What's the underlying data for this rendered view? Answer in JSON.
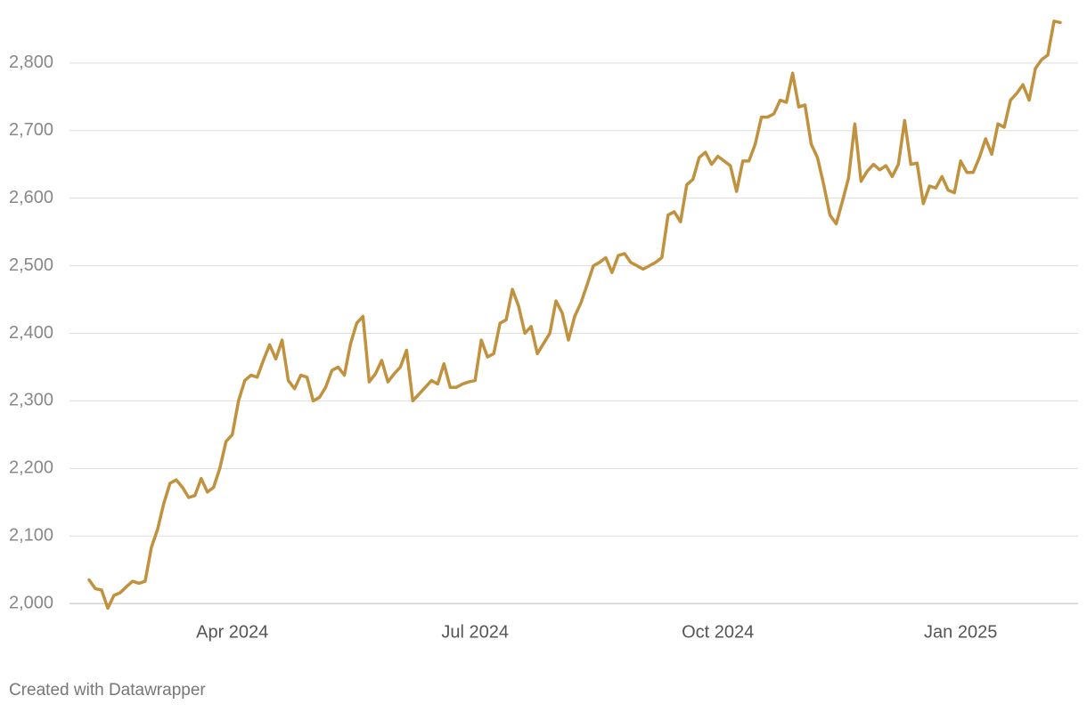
{
  "chart_data": {
    "type": "line",
    "categories": [
      null,
      null,
      null,
      null,
      null,
      null,
      null,
      null,
      null,
      null,
      null,
      null,
      null,
      null,
      null,
      null,
      null,
      null,
      null,
      null,
      null,
      null,
      null,
      "Apr 2024",
      null,
      null,
      null,
      null,
      null,
      null,
      null,
      null,
      null,
      null,
      null,
      null,
      null,
      null,
      null,
      null,
      null,
      null,
      null,
      null,
      null,
      null,
      null,
      null,
      null,
      null,
      null,
      null,
      null,
      null,
      null,
      null,
      null,
      null,
      null,
      null,
      null,
      null,
      "Jul 2024",
      null,
      null,
      null,
      null,
      null,
      null,
      null,
      null,
      null,
      null,
      null,
      null,
      null,
      null,
      null,
      null,
      null,
      null,
      null,
      null,
      null,
      null,
      null,
      null,
      null,
      null,
      null,
      null,
      null,
      null,
      null,
      null,
      null,
      null,
      null,
      null,
      null,
      null,
      "Oct 2024",
      null,
      null,
      null,
      null,
      null,
      null,
      null,
      null,
      null,
      null,
      null,
      null,
      null,
      null,
      null,
      null,
      null,
      null,
      null,
      null,
      null,
      null,
      null,
      null,
      null,
      null,
      null,
      null,
      null,
      null,
      null,
      null,
      null,
      null,
      null,
      null,
      null,
      null,
      "Jan 2025",
      null,
      null,
      null,
      null,
      null,
      null,
      null,
      null,
      null,
      null,
      null,
      null,
      null,
      null,
      null,
      null
    ],
    "values": [
      2035,
      2022,
      2020,
      1993,
      2012,
      2016,
      2025,
      2033,
      2030,
      2033,
      2083,
      2110,
      2148,
      2178,
      2183,
      2172,
      2157,
      2160,
      2185,
      2165,
      2172,
      2200,
      2240,
      2250,
      2300,
      2330,
      2338,
      2335,
      2360,
      2383,
      2362,
      2390,
      2330,
      2318,
      2338,
      2335,
      2300,
      2305,
      2320,
      2345,
      2350,
      2338,
      2385,
      2415,
      2425,
      2328,
      2340,
      2360,
      2328,
      2340,
      2350,
      2375,
      2300,
      2310,
      2320,
      2330,
      2325,
      2355,
      2320,
      2320,
      2325,
      2328,
      2330,
      2390,
      2365,
      2370,
      2415,
      2420,
      2465,
      2440,
      2400,
      2410,
      2370,
      2385,
      2400,
      2448,
      2430,
      2390,
      2425,
      2445,
      2472,
      2500,
      2505,
      2512,
      2490,
      2515,
      2518,
      2505,
      2500,
      2495,
      2500,
      2505,
      2512,
      2575,
      2580,
      2565,
      2620,
      2628,
      2660,
      2668,
      2650,
      2662,
      2655,
      2648,
      2610,
      2655,
      2655,
      2680,
      2720,
      2720,
      2725,
      2745,
      2742,
      2785,
      2735,
      2738,
      2680,
      2660,
      2620,
      2575,
      2562,
      2595,
      2630,
      2710,
      2625,
      2640,
      2650,
      2642,
      2648,
      2632,
      2650,
      2715,
      2650,
      2652,
      2592,
      2618,
      2615,
      2632,
      2612,
      2608,
      2655,
      2638,
      2638,
      2660,
      2688,
      2665,
      2710,
      2705,
      2745,
      2755,
      2768,
      2745,
      2792,
      2805,
      2812,
      2862,
      2860
    ],
    "color": "#c1913e",
    "ylim": [
      1987,
      2867
    ],
    "yticks": [
      {
        "value": 2000,
        "label": "2,000"
      },
      {
        "value": 2100,
        "label": "2,100"
      },
      {
        "value": 2200,
        "label": "2,200"
      },
      {
        "value": 2300,
        "label": "2,300"
      },
      {
        "value": 2400,
        "label": "2,400"
      },
      {
        "value": 2500,
        "label": "2,500"
      },
      {
        "value": 2600,
        "label": "2,600"
      },
      {
        "value": 2700,
        "label": "2,700"
      },
      {
        "value": 2800,
        "label": "2,800"
      }
    ],
    "grid": true,
    "credit": "Created with Datawrapper"
  }
}
